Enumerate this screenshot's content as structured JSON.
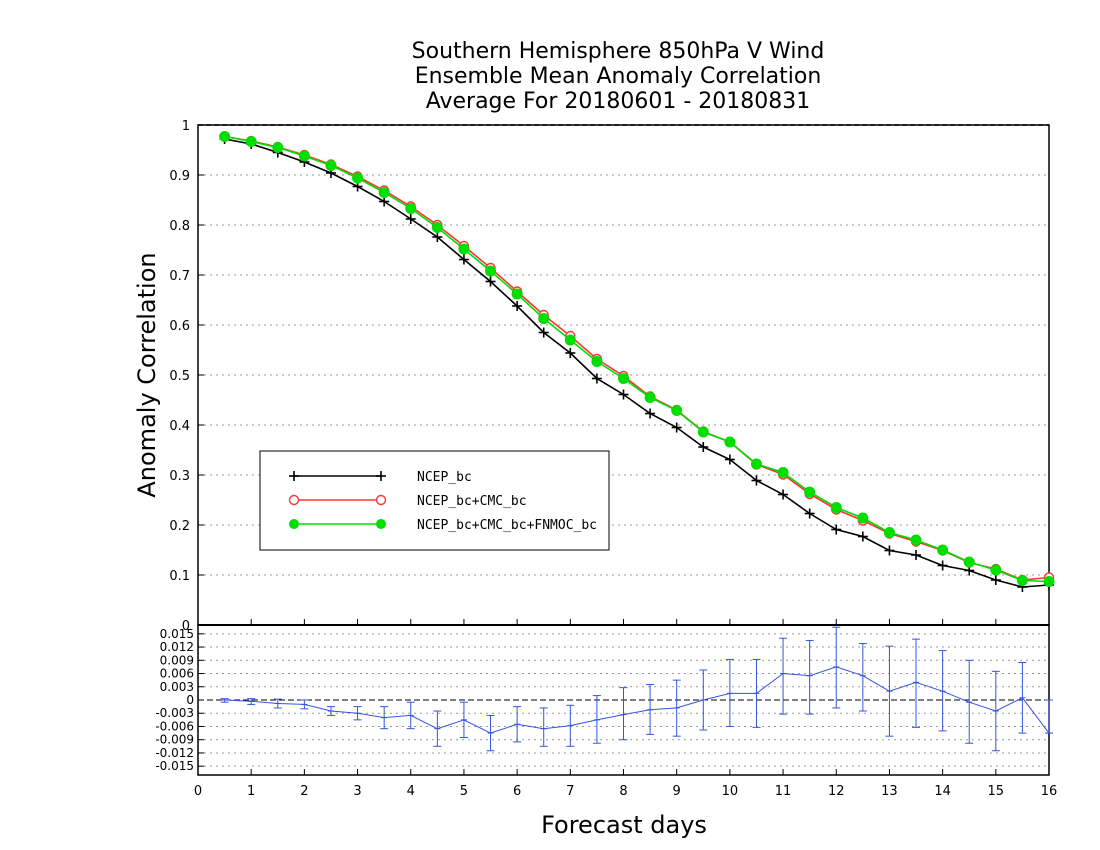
{
  "chart_data": [
    {
      "type": "line",
      "title": [
        "Southern Hemisphere 850hPa V Wind",
        "Ensemble Mean Anomaly Correlation",
        "Average For 20180601 - 20180831"
      ],
      "xlabel": "Forecast days",
      "ylabel": "Anomaly Correlation",
      "xlim": [
        0,
        16
      ],
      "ylim": [
        0,
        1
      ],
      "xticks": [
        "0",
        "1",
        "2",
        "3",
        "4",
        "5",
        "6",
        "7",
        "8",
        "9",
        "10",
        "11",
        "12",
        "13",
        "14",
        "15",
        "16"
      ],
      "yticks": [
        "0",
        "0.1",
        "0.2",
        "0.3",
        "0.4",
        "0.5",
        "0.6",
        "0.7",
        "0.8",
        "0.9",
        "1"
      ],
      "grid": true,
      "legend_position": "left-middle",
      "x": [
        0.5,
        1,
        1.5,
        2,
        2.5,
        3,
        3.5,
        4,
        4.5,
        5,
        5.5,
        6,
        6.5,
        7,
        7.5,
        8,
        8.5,
        9,
        9.5,
        10,
        10.5,
        11,
        11.5,
        12,
        12.5,
        13,
        13.5,
        14,
        14.5,
        15,
        15.5,
        16
      ],
      "series": [
        {
          "name": "NCEP_bc",
          "color": "#000000",
          "marker": "plus",
          "values": [
            0.972,
            0.962,
            0.945,
            0.926,
            0.904,
            0.877,
            0.847,
            0.812,
            0.776,
            0.731,
            0.687,
            0.638,
            0.585,
            0.544,
            0.493,
            0.461,
            0.423,
            0.395,
            0.356,
            0.331,
            0.289,
            0.261,
            0.223,
            0.191,
            0.177,
            0.149,
            0.14,
            0.119,
            0.109,
            0.09,
            0.076,
            0.08
          ]
        },
        {
          "name": "NCEP_bc+CMC_bc",
          "color": "#ff3333",
          "marker": "open-circle",
          "values": [
            0.977,
            0.968,
            0.956,
            0.94,
            0.921,
            0.897,
            0.869,
            0.837,
            0.8,
            0.758,
            0.714,
            0.667,
            0.62,
            0.578,
            0.532,
            0.498,
            0.457,
            0.43,
            0.387,
            0.366,
            0.321,
            0.301,
            0.262,
            0.231,
            0.209,
            0.183,
            0.167,
            0.149,
            0.125,
            0.112,
            0.09,
            0.095
          ]
        },
        {
          "name": "NCEP_bc+CMC_bc+FNMOC_bc",
          "color": "#00dd00",
          "marker": "filled-circle",
          "values": [
            0.977,
            0.967,
            0.955,
            0.938,
            0.919,
            0.894,
            0.865,
            0.833,
            0.795,
            0.752,
            0.708,
            0.662,
            0.613,
            0.57,
            0.527,
            0.493,
            0.455,
            0.429,
            0.386,
            0.366,
            0.322,
            0.305,
            0.266,
            0.235,
            0.214,
            0.185,
            0.17,
            0.15,
            0.126,
            0.11,
            0.089,
            0.087
          ]
        }
      ]
    },
    {
      "type": "line",
      "xlabel": "Forecast days",
      "xlim": [
        0,
        16
      ],
      "ylim": [
        -0.017,
        0.017
      ],
      "yticks": [
        "0.015",
        "0.012",
        "0.009",
        "0.006",
        "0.003",
        "0",
        "-0.003",
        "-0.006",
        "-0.009",
        "-0.012",
        "-0.015"
      ],
      "grid": true,
      "zero_line": true,
      "x": [
        0.5,
        1,
        1.5,
        2,
        2.5,
        3,
        3.5,
        4,
        4.5,
        5,
        5.5,
        6,
        6.5,
        7,
        7.5,
        8,
        8.5,
        9,
        9.5,
        10,
        10.5,
        11,
        11.5,
        12,
        12.5,
        13,
        13.5,
        14,
        14.5,
        15,
        15.5,
        16
      ],
      "series": [
        {
          "color": "#3355dd",
          "values": [
            0.0,
            -0.0003,
            -0.0008,
            -0.001,
            -0.0025,
            -0.003,
            -0.004,
            -0.0035,
            -0.0065,
            -0.0045,
            -0.0075,
            -0.0055,
            -0.0065,
            -0.0058,
            -0.0045,
            -0.0033,
            -0.0022,
            -0.0018,
            0.0,
            0.0015,
            0.0015,
            0.006,
            0.0055,
            0.0075,
            0.0055,
            0.002,
            0.004,
            0.002,
            -0.0005,
            -0.0025,
            0.0005,
            -0.0075
          ],
          "error_low": [
            -0.0005,
            -0.001,
            -0.0018,
            -0.002,
            -0.0035,
            -0.0045,
            -0.0065,
            -0.0065,
            -0.0105,
            -0.0085,
            -0.0115,
            -0.0095,
            -0.0105,
            -0.0105,
            -0.0098,
            -0.009,
            -0.0078,
            -0.0082,
            -0.0068,
            -0.006,
            -0.0062,
            -0.0032,
            -0.0032,
            -0.0018,
            -0.0025,
            -0.0082,
            -0.0062,
            -0.007,
            -0.0098,
            -0.0115,
            -0.0075,
            -0.0075
          ],
          "error_high": [
            0.0003,
            0.0003,
            0.0002,
            0.0,
            -0.0015,
            -0.0015,
            -0.0015,
            -0.0005,
            -0.0025,
            -0.0005,
            -0.0035,
            -0.0015,
            -0.0018,
            -0.0012,
            0.001,
            0.0028,
            0.0035,
            0.0045,
            0.0068,
            0.0092,
            0.0092,
            0.014,
            0.0135,
            0.0165,
            0.0128,
            0.0122,
            0.0138,
            0.0112,
            0.009,
            0.0065,
            0.0085,
            0.0
          ]
        }
      ]
    }
  ],
  "legend": {
    "entries": [
      "NCEP_bc",
      "NCEP_bc+CMC_bc",
      "NCEP_bc+CMC_bc+FNMOC_bc"
    ]
  }
}
